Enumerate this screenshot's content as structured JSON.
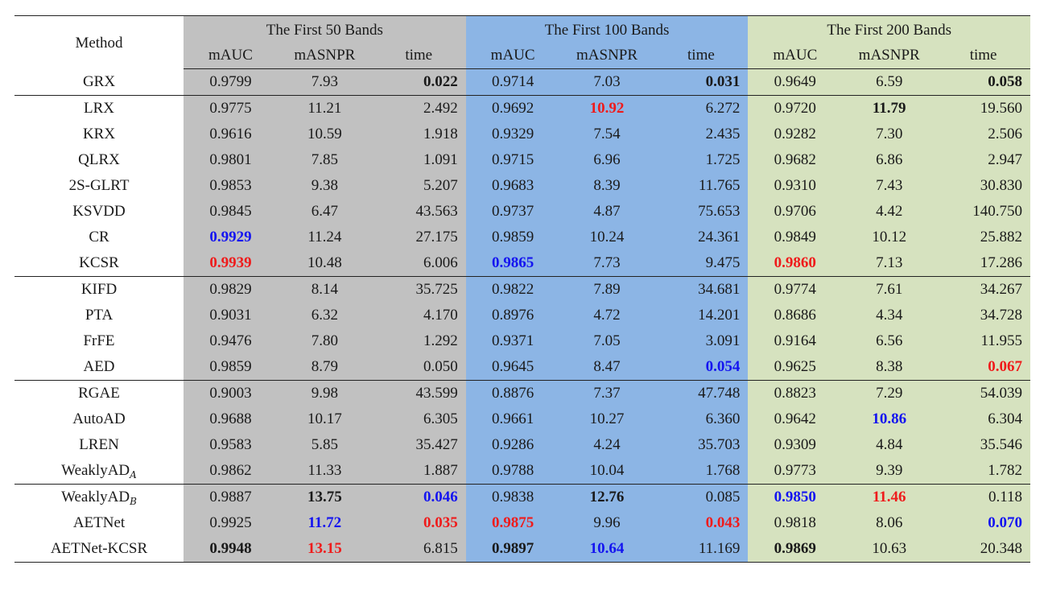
{
  "header": {
    "method": "Method",
    "groups": [
      "The First 50 Bands",
      "The First 100 Bands",
      "The First 200 Bands"
    ],
    "metrics": [
      "mAUC",
      "mASNPR",
      "time"
    ]
  },
  "rows": [
    {
      "method": "GRX",
      "values": [
        "0.9799",
        "7.93",
        "0.022",
        "0.9714",
        "7.03",
        "0.031",
        "0.9649",
        "6.59",
        "0.058"
      ],
      "styles": [
        "",
        "",
        "b",
        "",
        "",
        "b",
        "",
        "",
        "b"
      ],
      "sep": false
    },
    {
      "method": "LRX",
      "values": [
        "0.9775",
        "11.21",
        "2.492",
        "0.9692",
        "10.92",
        "6.272",
        "0.9720",
        "11.79",
        "19.560"
      ],
      "styles": [
        "",
        "",
        "",
        "",
        "red",
        "",
        "",
        "b",
        ""
      ],
      "sep": true
    },
    {
      "method": "KRX",
      "values": [
        "0.9616",
        "10.59",
        "1.918",
        "0.9329",
        "7.54",
        "2.435",
        "0.9282",
        "7.30",
        "2.506"
      ],
      "styles": [
        "",
        "",
        "",
        "",
        "",
        "",
        "",
        "",
        ""
      ],
      "sep": false
    },
    {
      "method": "QLRX",
      "values": [
        "0.9801",
        "7.85",
        "1.091",
        "0.9715",
        "6.96",
        "1.725",
        "0.9682",
        "6.86",
        "2.947"
      ],
      "styles": [
        "",
        "",
        "",
        "",
        "",
        "",
        "",
        "",
        ""
      ],
      "sep": false
    },
    {
      "method": "2S-GLRT",
      "values": [
        "0.9853",
        "9.38",
        "5.207",
        "0.9683",
        "8.39",
        "11.765",
        "0.9310",
        "7.43",
        "30.830"
      ],
      "styles": [
        "",
        "",
        "",
        "",
        "",
        "",
        "",
        "",
        ""
      ],
      "sep": false
    },
    {
      "method": "KSVDD",
      "values": [
        "0.9845",
        "6.47",
        "43.563",
        "0.9737",
        "4.87",
        "75.653",
        "0.9706",
        "4.42",
        "140.750"
      ],
      "styles": [
        "",
        "",
        "",
        "",
        "",
        "",
        "",
        "",
        ""
      ],
      "sep": false
    },
    {
      "method": "CR",
      "values": [
        "0.9929",
        "11.24",
        "27.175",
        "0.9859",
        "10.24",
        "24.361",
        "0.9849",
        "10.12",
        "25.882"
      ],
      "styles": [
        "blue",
        "",
        "",
        "",
        "",
        "",
        "",
        "",
        ""
      ],
      "sep": false
    },
    {
      "method": "KCSR",
      "values": [
        "0.9939",
        "10.48",
        "6.006",
        "0.9865",
        "7.73",
        "9.475",
        "0.9860",
        "7.13",
        "17.286"
      ],
      "styles": [
        "red",
        "",
        "",
        "blue",
        "",
        "",
        "red",
        "",
        ""
      ],
      "sep": false
    },
    {
      "method": "KIFD",
      "values": [
        "0.9829",
        "8.14",
        "35.725",
        "0.9822",
        "7.89",
        "34.681",
        "0.9774",
        "7.61",
        "34.267"
      ],
      "styles": [
        "",
        "",
        "",
        "",
        "",
        "",
        "",
        "",
        ""
      ],
      "sep": true
    },
    {
      "method": "PTA",
      "values": [
        "0.9031",
        "6.32",
        "4.170",
        "0.8976",
        "4.72",
        "14.201",
        "0.8686",
        "4.34",
        "34.728"
      ],
      "styles": [
        "",
        "",
        "",
        "",
        "",
        "",
        "",
        "",
        ""
      ],
      "sep": false
    },
    {
      "method": "FrFE",
      "values": [
        "0.9476",
        "7.80",
        "1.292",
        "0.9371",
        "7.05",
        "3.091",
        "0.9164",
        "6.56",
        "11.955"
      ],
      "styles": [
        "",
        "",
        "",
        "",
        "",
        "",
        "",
        "",
        ""
      ],
      "sep": false
    },
    {
      "method": "AED",
      "values": [
        "0.9859",
        "8.79",
        "0.050",
        "0.9645",
        "8.47",
        "0.054",
        "0.9625",
        "8.38",
        "0.067"
      ],
      "styles": [
        "",
        "",
        "",
        "",
        "",
        "blue",
        "",
        "",
        "red"
      ],
      "sep": false
    },
    {
      "method": "RGAE",
      "values": [
        "0.9003",
        "9.98",
        "43.599",
        "0.8876",
        "7.37",
        "47.748",
        "0.8823",
        "7.29",
        "54.039"
      ],
      "styles": [
        "",
        "",
        "",
        "",
        "",
        "",
        "",
        "",
        ""
      ],
      "sep": true
    },
    {
      "method": "AutoAD",
      "values": [
        "0.9688",
        "10.17",
        "6.305",
        "0.9661",
        "10.27",
        "6.360",
        "0.9642",
        "10.86",
        "6.304"
      ],
      "styles": [
        "",
        "",
        "",
        "",
        "",
        "",
        "",
        "blue",
        ""
      ],
      "sep": false
    },
    {
      "method": "LREN",
      "values": [
        "0.9583",
        "5.85",
        "35.427",
        "0.9286",
        "4.24",
        "35.703",
        "0.9309",
        "4.84",
        "35.546"
      ],
      "styles": [
        "",
        "",
        "",
        "",
        "",
        "",
        "",
        "",
        ""
      ],
      "sep": false
    },
    {
      "method": "WeaklyAD",
      "method_sub": "A",
      "values": [
        "0.9862",
        "11.33",
        "1.887",
        "0.9788",
        "10.04",
        "1.768",
        "0.9773",
        "9.39",
        "1.782"
      ],
      "styles": [
        "",
        "",
        "",
        "",
        "",
        "",
        "",
        "",
        ""
      ],
      "sep": false
    },
    {
      "method": "WeaklyAD",
      "method_sub": "B",
      "values": [
        "0.9887",
        "13.75",
        "0.046",
        "0.9838",
        "12.76",
        "0.085",
        "0.9850",
        "11.46",
        "0.118"
      ],
      "styles": [
        "",
        "b",
        "blue",
        "",
        "b",
        "",
        "blue",
        "red",
        ""
      ],
      "sep": true
    },
    {
      "method": "AETNet",
      "values": [
        "0.9925",
        "11.72",
        "0.035",
        "0.9875",
        "9.96",
        "0.043",
        "0.9818",
        "8.06",
        "0.070"
      ],
      "styles": [
        "",
        "blue",
        "red",
        "red",
        "",
        "red",
        "",
        "",
        "blue"
      ],
      "sep": false
    },
    {
      "method": "AETNet-KCSR",
      "values": [
        "0.9948",
        "13.15",
        "6.815",
        "0.9897",
        "10.64",
        "11.169",
        "0.9869",
        "10.63",
        "20.348"
      ],
      "styles": [
        "b",
        "red",
        "",
        "b",
        "blue",
        "",
        "b",
        "",
        ""
      ],
      "sep": false
    }
  ]
}
